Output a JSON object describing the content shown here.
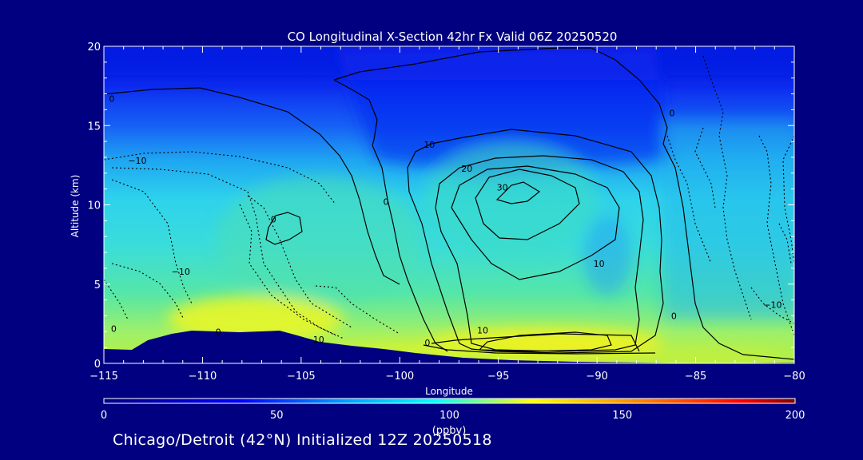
{
  "chart_data": {
    "type": "heatmap",
    "title": "CO Longitudinal X-Section 42hr  Fx Valid 06Z 20250520",
    "xlabel": "Longitude",
    "ylabel": "Altitude (km)",
    "xlim": [
      -115,
      -80
    ],
    "ylim": [
      0,
      20
    ],
    "x_ticks": [
      -115,
      -110,
      -105,
      -100,
      -95,
      -90,
      -85,
      -80
    ],
    "x_tick_labels": [
      "−115",
      "−110",
      "−105",
      "−100",
      "−95",
      "−90",
      "−85",
      "−80"
    ],
    "y_ticks": [
      0,
      5,
      10,
      15,
      20
    ],
    "y_tick_labels": [
      "0",
      "5",
      "10",
      "15",
      "20"
    ],
    "colorbar": {
      "min": 0,
      "max": 200,
      "ticks": [
        0,
        50,
        100,
        150,
        200
      ],
      "tick_labels": [
        "0",
        "50",
        "100",
        "150",
        "200"
      ],
      "label": "(ppbv)",
      "colors": [
        "#000080",
        "#0000ff",
        "#00bfff",
        "#00ffff",
        "#ffff00",
        "#ff8000",
        "#ff0000",
        "#800000"
      ]
    },
    "contour_labels": [
      {
        "text": "0",
        "lon": -114.6,
        "alt": 16.5
      },
      {
        "text": "−10",
        "lon": -113.3,
        "alt": 12.6
      },
      {
        "text": "0",
        "lon": -106.4,
        "alt": 8.9
      },
      {
        "text": "−10",
        "lon": -111.1,
        "alt": 5.6
      },
      {
        "text": "0",
        "lon": -114.5,
        "alt": 2.0
      },
      {
        "text": "0",
        "lon": -109.2,
        "alt": 1.8
      },
      {
        "text": "−10",
        "lon": -104.3,
        "alt": 1.3
      },
      {
        "text": "0",
        "lon": -100.7,
        "alt": 10.0
      },
      {
        "text": "10",
        "lon": -98.5,
        "alt": 13.6
      },
      {
        "text": "20",
        "lon": -96.6,
        "alt": 12.1
      },
      {
        "text": "30",
        "lon": -94.8,
        "alt": 10.9
      },
      {
        "text": "10",
        "lon": -89.9,
        "alt": 6.1
      },
      {
        "text": "0",
        "lon": -86.2,
        "alt": 15.6
      },
      {
        "text": "0",
        "lon": -86.1,
        "alt": 2.8
      },
      {
        "text": "10",
        "lon": -95.8,
        "alt": 1.9
      },
      {
        "text": "0",
        "lon": -98.6,
        "alt": 1.1
      },
      {
        "text": "−10",
        "lon": -81.1,
        "alt": 3.5
      }
    ]
  },
  "footer": "Chicago/Detroit (42°N) Initialized 12Z 20250518"
}
